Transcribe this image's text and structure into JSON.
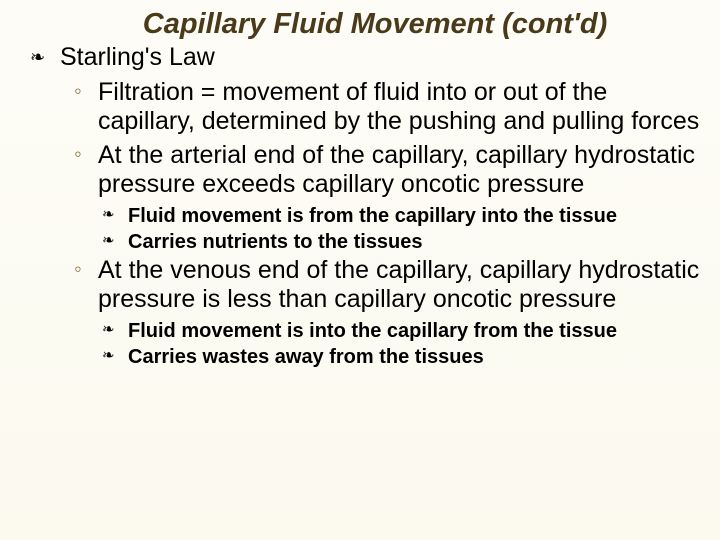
{
  "slide": {
    "title": "Capillary Fluid Movement (cont'd)",
    "heading1": "Starling's Law",
    "bullets": {
      "b1": "Filtration = movement of fluid into or out of the capillary, determined by the pushing and pulling forces",
      "b2": "At the arterial end of the capillary, capillary hydrostatic pressure exceeds capillary oncotic pressure",
      "b2_sub1": "Fluid movement is from the capillary into the tissue",
      "b2_sub2": "Carries nutrients to the tissues",
      "b3": "At the venous end of the capillary, capillary hydrostatic pressure is less than capillary oncotic pressure",
      "b3_sub1": "Fluid movement is into the capillary from the tissue",
      "b3_sub2": "Carries wastes away from the tissues"
    },
    "colors": {
      "title_color": "#4a3a1a",
      "text_color": "#000000",
      "sub_bullet_color": "#8a7a4a",
      "background": "#fdfcf5"
    },
    "fonts": {
      "title_size_pt": 22,
      "body_size_pt": 19,
      "sub_size_pt": 15
    }
  }
}
